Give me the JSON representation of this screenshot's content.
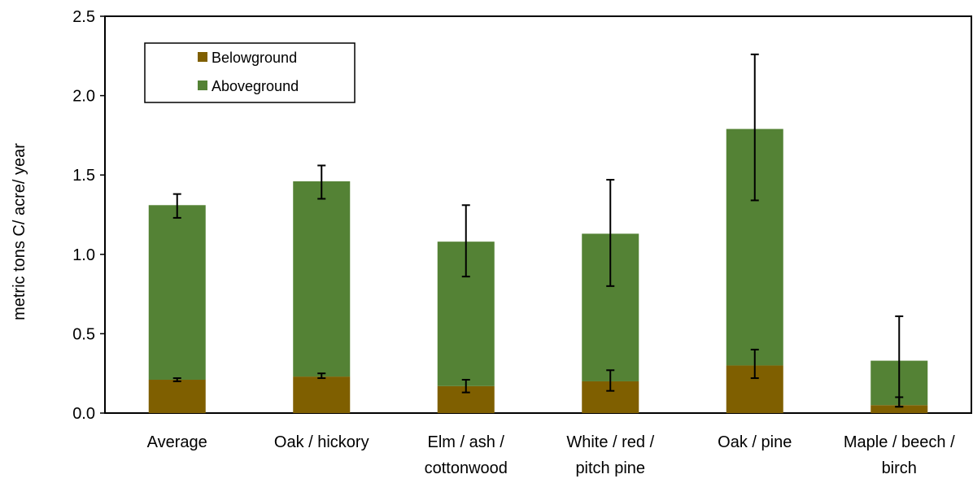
{
  "chart_data": {
    "type": "bar",
    "stacked": true,
    "ylabel": "metric tons C/ acre/ year",
    "ylim": [
      0,
      2.5
    ],
    "yticks": [
      "0.0",
      "0.5",
      "1.0",
      "1.5",
      "2.0",
      "2.5"
    ],
    "grid": false,
    "legend_position": "top-left",
    "categories": [
      [
        "Average"
      ],
      [
        "Oak / hickory"
      ],
      [
        "Elm / ash /",
        "cottonwood"
      ],
      [
        "White / red /",
        "pitch pine"
      ],
      [
        "Oak / pine"
      ],
      [
        "Maple / beech /",
        "birch"
      ]
    ],
    "series": [
      {
        "name": "Belowground",
        "color": "#7f5f00",
        "values": [
          0.21,
          0.23,
          0.17,
          0.2,
          0.3,
          0.05
        ],
        "error_low": [
          0.2,
          0.22,
          0.13,
          0.14,
          0.22,
          0.04
        ],
        "error_high": [
          0.22,
          0.25,
          0.21,
          0.27,
          0.4,
          0.1
        ]
      },
      {
        "name": "Aboveground",
        "color": "#548235",
        "values": [
          1.1,
          1.23,
          0.91,
          0.93,
          1.49,
          0.28
        ],
        "totals": [
          1.31,
          1.46,
          1.08,
          1.13,
          1.79,
          0.33
        ],
        "error_low": [
          1.23,
          1.35,
          0.86,
          0.8,
          1.34,
          0.04
        ],
        "error_high": [
          1.38,
          1.56,
          1.31,
          1.47,
          2.26,
          0.61
        ]
      }
    ]
  }
}
